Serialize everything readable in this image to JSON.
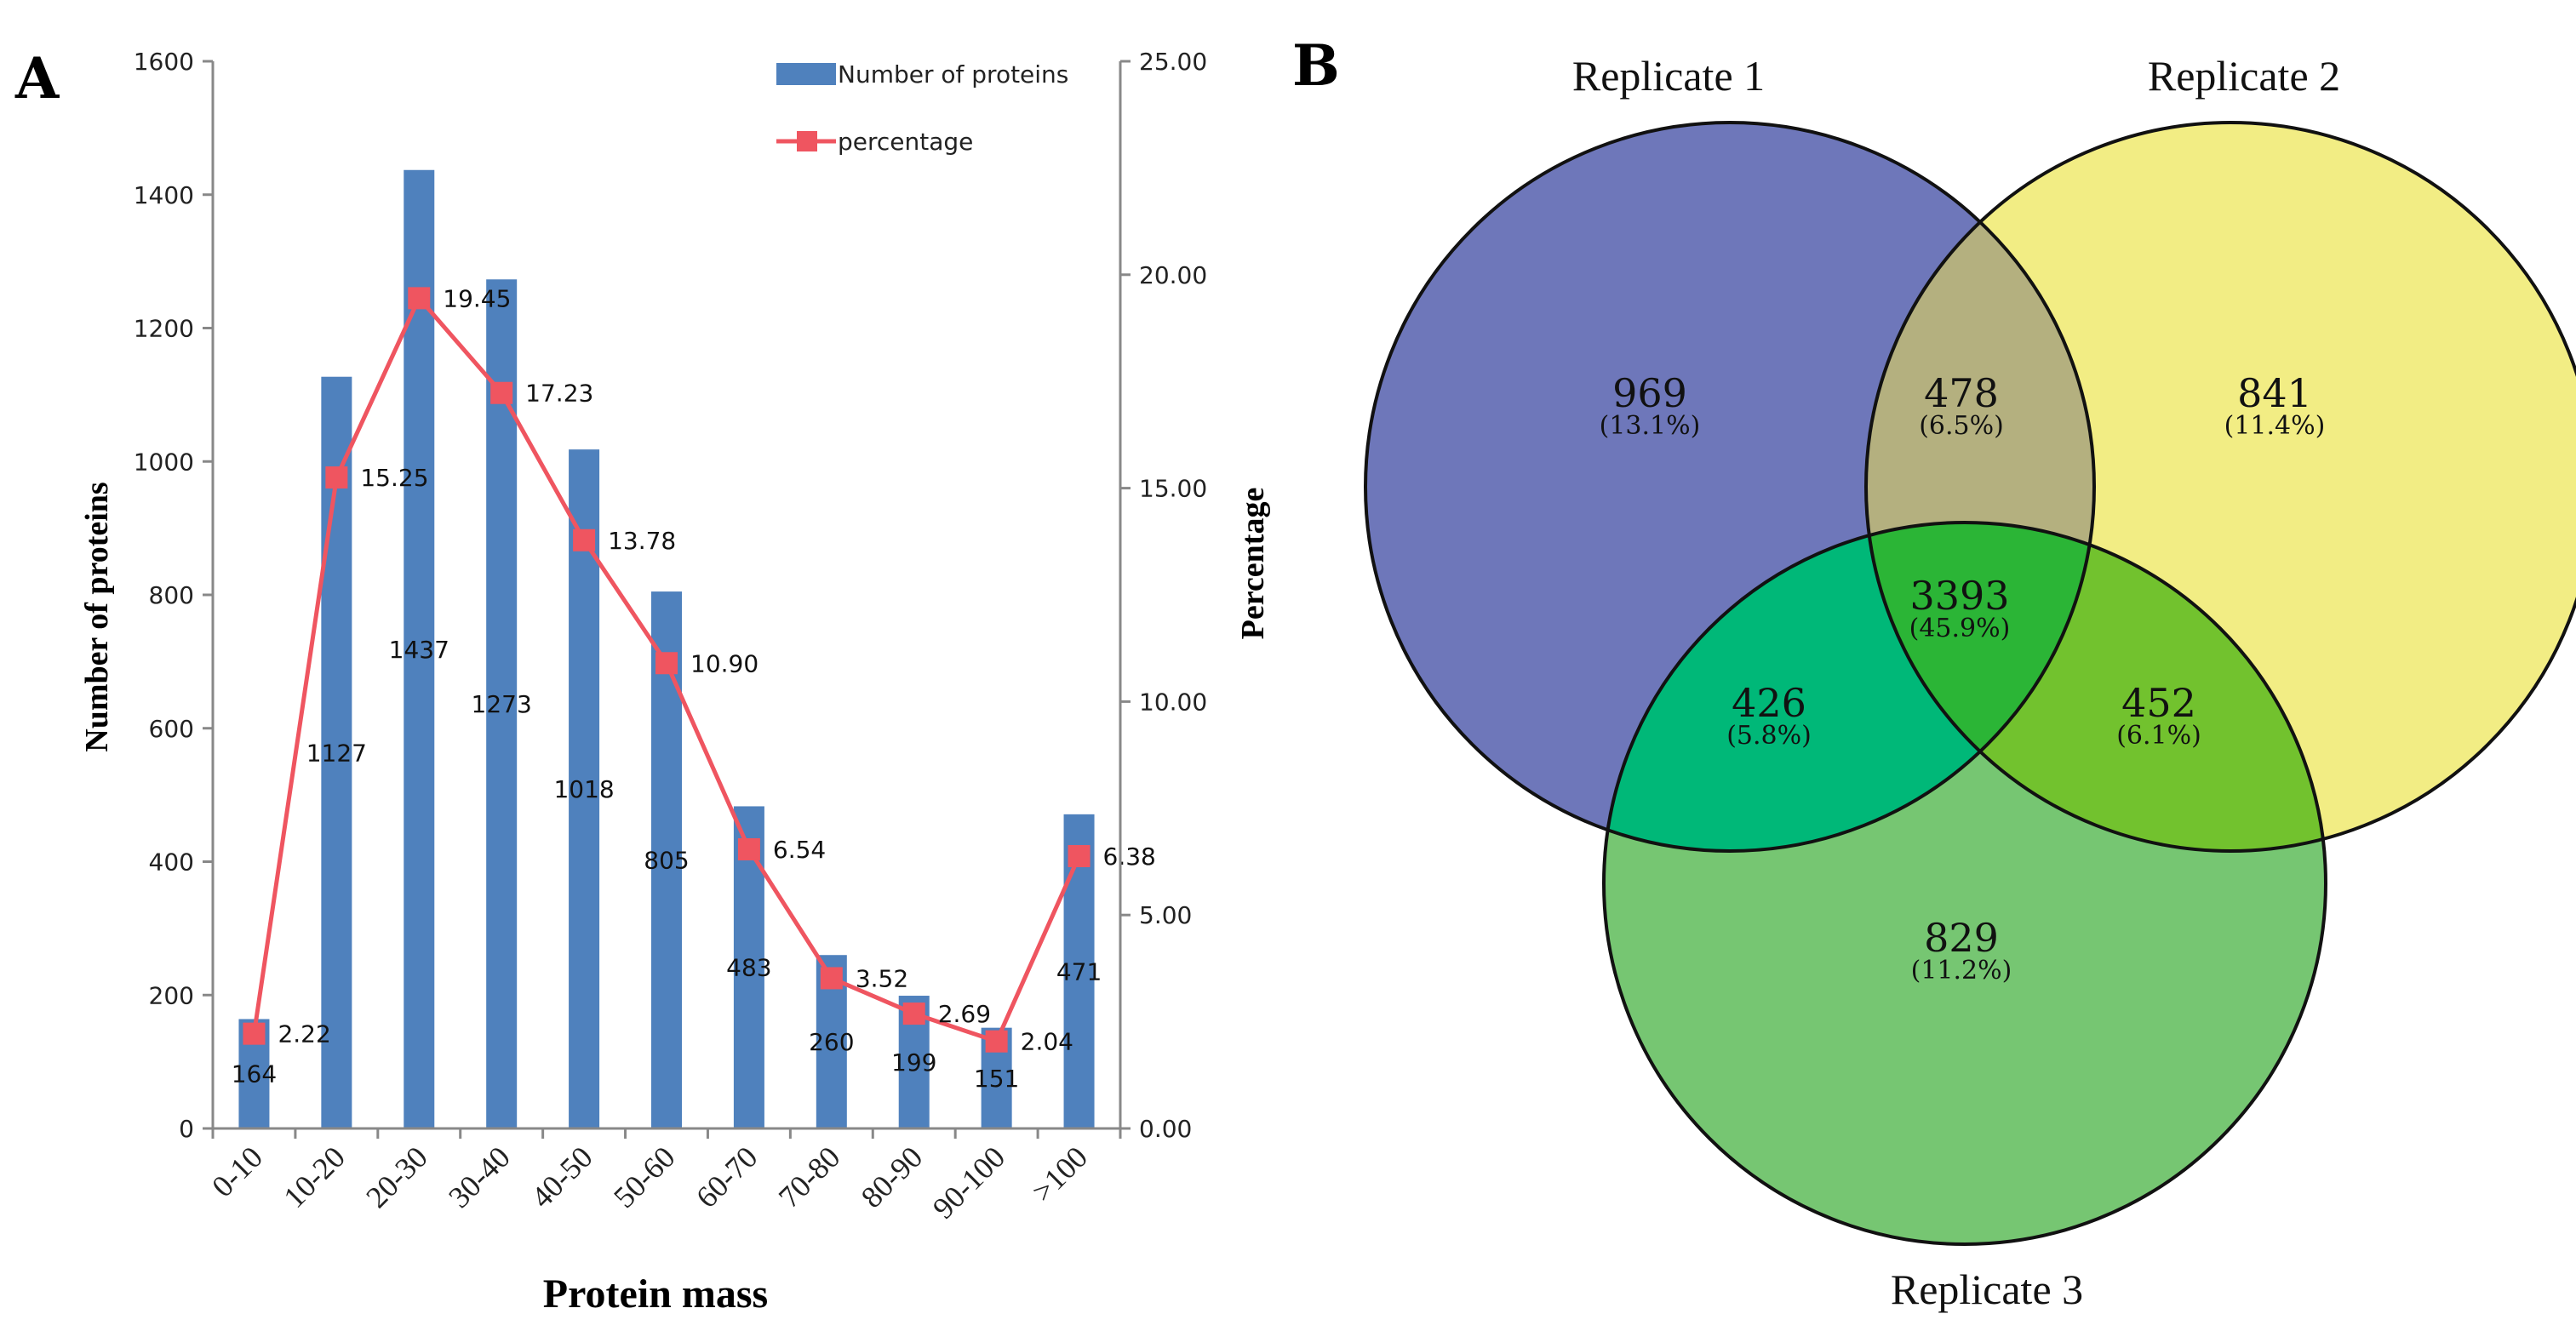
{
  "chart_data": [
    {
      "type": "bar",
      "panel_label": "A",
      "categories": [
        "0-10",
        "10-20",
        "20-30",
        "30-40",
        "40-50",
        "50-60",
        "60-70",
        "70-80",
        "80-90",
        "90-100",
        ">100"
      ],
      "series": [
        {
          "name": "Number of proteins",
          "type": "bar",
          "axis": "left",
          "color": "#4F81BD",
          "values": [
            164,
            1127,
            1437,
            1273,
            1018,
            805,
            483,
            260,
            199,
            151,
            471
          ],
          "labels": [
            "164",
            "1127",
            "1437",
            "1273",
            "1018",
            "805",
            "483",
            "260",
            "199",
            "151",
            "471"
          ]
        },
        {
          "name": "percentage",
          "type": "line",
          "axis": "right",
          "color": "#EF5560",
          "values": [
            2.22,
            15.25,
            19.45,
            17.23,
            13.78,
            10.9,
            6.54,
            3.52,
            2.69,
            2.04,
            6.38
          ],
          "labels": [
            "2.22",
            "15.25",
            "19.45",
            "17.23",
            "13.78",
            "10.90",
            "6.54",
            "3.52",
            "2.69",
            "2.04",
            "6.38"
          ]
        }
      ],
      "xlabel": "Protein mass",
      "ylabel": "Number of proteins",
      "y2label": "Percentage",
      "ylim": [
        0,
        1600
      ],
      "y2lim": [
        0,
        25
      ],
      "yticks": [
        "0",
        "200",
        "400",
        "600",
        "800",
        "1000",
        "1200",
        "1400",
        "1600"
      ],
      "y2ticks": [
        "0.00",
        "5.00",
        "10.00",
        "15.00",
        "20.00",
        "25.00"
      ],
      "legend": {
        "placement": "top-right",
        "entries": [
          "Number of proteins",
          "percentage"
        ]
      },
      "grid": false
    },
    {
      "type": "venn",
      "panel_label": "B",
      "sets": [
        {
          "name": "Replicate 1",
          "color": "#6E77BA"
        },
        {
          "name": "Replicate 2",
          "color": "#F2ED84"
        },
        {
          "name": "Replicate 3",
          "color": "#76C672"
        }
      ],
      "regions": [
        {
          "sets": [
            "Replicate 1"
          ],
          "count": "969",
          "percent": "(13.1%)",
          "color": "#6E77BA"
        },
        {
          "sets": [
            "Replicate 2"
          ],
          "count": "841",
          "percent": "(11.4%)",
          "color": "#F2ED84"
        },
        {
          "sets": [
            "Replicate 3"
          ],
          "count": "829",
          "percent": "(11.2%)",
          "color": "#76C672"
        },
        {
          "sets": [
            "Replicate 1",
            "Replicate 2"
          ],
          "count": "478",
          "percent": "(6.5%)",
          "color": "#B4B07F"
        },
        {
          "sets": [
            "Replicate 1",
            "Replicate 3"
          ],
          "count": "426",
          "percent": "(5.8%)",
          "color": "#00B878"
        },
        {
          "sets": [
            "Replicate 2",
            "Replicate 3"
          ],
          "count": "452",
          "percent": "(6.1%)",
          "color": "#72C22E"
        },
        {
          "sets": [
            "Replicate 1",
            "Replicate 2",
            "Replicate 3"
          ],
          "count": "3393",
          "percent": "(45.9%)",
          "color": "#2BB536"
        }
      ]
    }
  ]
}
